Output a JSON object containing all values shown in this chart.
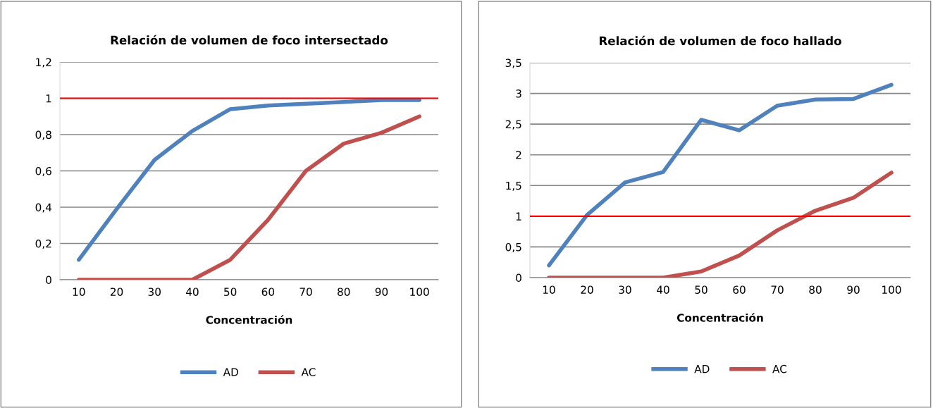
{
  "chart_data": [
    {
      "type": "line",
      "title": "Relación de volumen de foco intersectado",
      "xlabel": "Concentración",
      "categories": [
        "10",
        "20",
        "30",
        "40",
        "50",
        "60",
        "70",
        "80",
        "90",
        "100"
      ],
      "series": [
        {
          "name": "AD",
          "color": "#4f81bd",
          "values": [
            0.11,
            0.39,
            0.66,
            0.82,
            0.94,
            0.96,
            0.97,
            0.98,
            0.99,
            0.99
          ]
        },
        {
          "name": "AC",
          "color": "#c0504d",
          "values": [
            0,
            0,
            0,
            0,
            0.11,
            0.33,
            0.6,
            0.75,
            0.81,
            0.9
          ]
        }
      ],
      "ylim": [
        0,
        1.2
      ],
      "yticks": [
        0,
        {
          "value": 0.2,
          "label": "0,2"
        },
        {
          "value": 0.4,
          "label": "0,4"
        },
        {
          "value": 0.6,
          "label": "0,6"
        },
        {
          "value": 0.8,
          "label": "0,8"
        },
        1,
        {
          "value": 1.2,
          "label": "1,2"
        }
      ],
      "ref_lines": [
        {
          "axis": "y",
          "value": 1,
          "color": "#ff0000"
        }
      ],
      "grid": "y",
      "legend": "bottom",
      "marker": "none",
      "line_style": "solid"
    },
    {
      "type": "line",
      "title": "Relación de volumen de foco hallado",
      "xlabel": "Concentración",
      "categories": [
        "10",
        "20",
        "30",
        "40",
        "50",
        "60",
        "70",
        "80",
        "90",
        "100"
      ],
      "series": [
        {
          "name": "AD",
          "color": "#4f81bd",
          "values": [
            0.2,
            1.02,
            1.55,
            1.72,
            2.57,
            2.4,
            2.8,
            2.9,
            2.91,
            3.14
          ]
        },
        {
          "name": "AC",
          "color": "#c0504d",
          "values": [
            0,
            0,
            0,
            0,
            0.1,
            0.36,
            0.77,
            1.09,
            1.3,
            1.71
          ]
        }
      ],
      "ylim": [
        0,
        3.5
      ],
      "yticks": [
        0,
        {
          "value": 0.5,
          "label": "0,5"
        },
        1,
        {
          "value": 1.5,
          "label": "1,5"
        },
        2,
        {
          "value": 2.5,
          "label": "2,5"
        },
        3,
        {
          "value": 3.5,
          "label": "3,5"
        }
      ],
      "ref_lines": [
        {
          "axis": "y",
          "value": 1,
          "color": "#ff0000"
        }
      ],
      "grid": "y",
      "legend": "bottom",
      "marker": "none",
      "line_style": "solid"
    }
  ]
}
